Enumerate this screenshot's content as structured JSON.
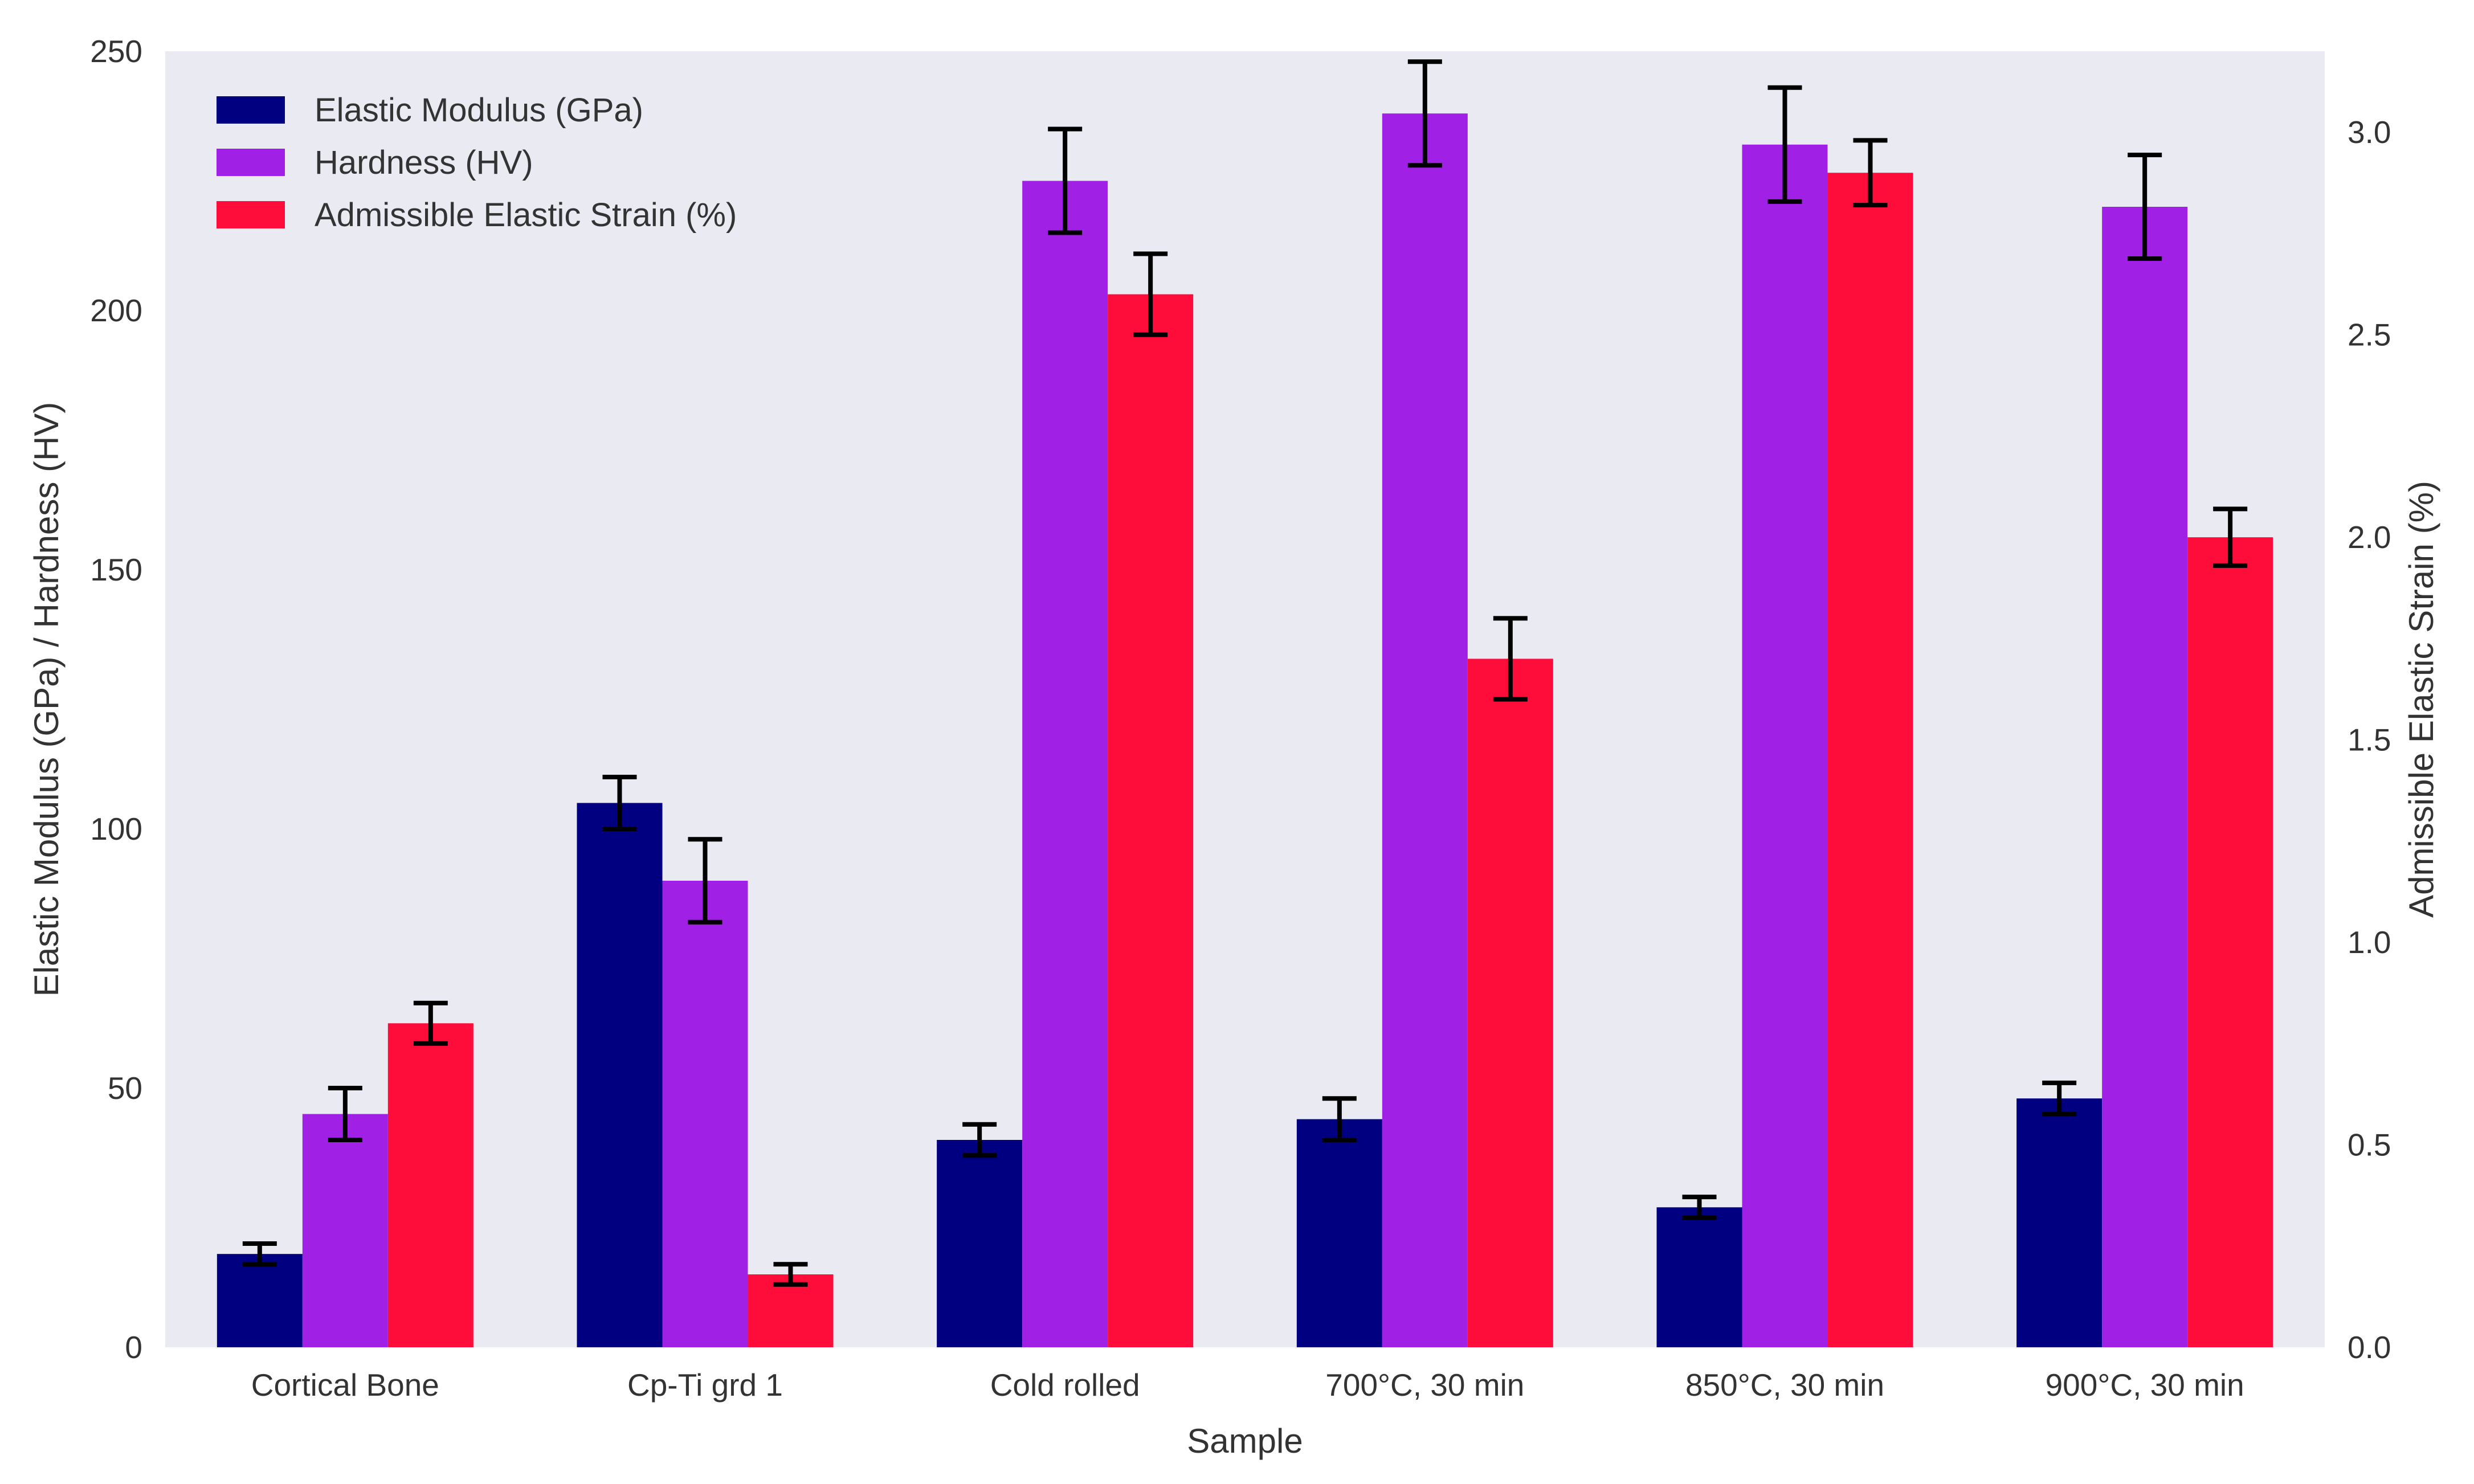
{
  "chart_data": {
    "type": "bar",
    "title": "",
    "xlabel": "Sample",
    "ylabel_left": "Elastic Modulus (GPa) / Hardness (HV)",
    "ylabel_right": "Admissible Elastic Strain (%)",
    "categories": [
      "Cortical Bone",
      "Cp-Ti grd 1",
      "Cold rolled",
      "700°C, 30 min",
      "850°C, 30 min",
      "900°C, 30 min"
    ],
    "ylim_left": [
      0,
      250
    ],
    "ylim_right": [
      0,
      3.2
    ],
    "yticks_left": [
      "0",
      "50",
      "100",
      "150",
      "200",
      "250"
    ],
    "yticks_right": [
      "0.0",
      "0.5",
      "1.0",
      "1.5",
      "2.0",
      "2.5",
      "3.0"
    ],
    "grid": false,
    "legend_position": "top-left",
    "background_color": "#e9eaf2",
    "series": [
      {
        "name": "Elastic Modulus (GPa)",
        "axis": "left",
        "color": "#000080",
        "values": [
          18,
          105,
          40,
          44,
          27,
          48
        ],
        "errors": [
          2,
          5,
          3,
          4,
          2,
          3
        ]
      },
      {
        "name": "Hardness (HV)",
        "axis": "left",
        "color": "#a020e6",
        "values": [
          45,
          90,
          225,
          238,
          232,
          220
        ],
        "errors": [
          5,
          8,
          10,
          10,
          11,
          10
        ]
      },
      {
        "name": "Admissible Elastic Strain (%)",
        "axis": "right",
        "color": "#ff0d3a",
        "values": [
          0.8,
          0.18,
          2.6,
          1.7,
          2.9,
          2.0
        ],
        "errors": [
          0.05,
          0.025,
          0.1,
          0.1,
          0.08,
          0.07
        ]
      }
    ]
  }
}
